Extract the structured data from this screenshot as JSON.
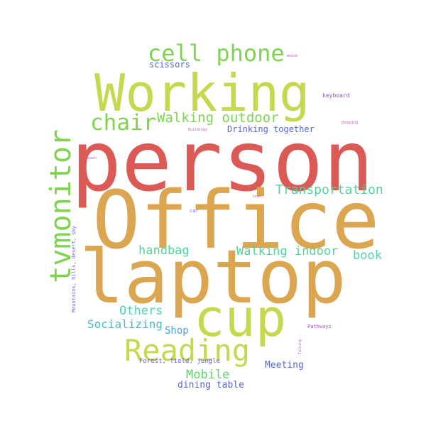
{
  "words": [
    {
      "id": "person",
      "text": "person",
      "color": "#dc5a55"
    },
    {
      "id": "office",
      "text": "Office",
      "color": "#dca550"
    },
    {
      "id": "laptop",
      "text": "laptop",
      "color": "#dca550"
    },
    {
      "id": "working",
      "text": "Working",
      "color": "#c5d84e"
    },
    {
      "id": "cup",
      "text": "cup",
      "color": "#c5d84e"
    },
    {
      "id": "reading",
      "text": "Reading",
      "color": "#c5d84e"
    },
    {
      "id": "tvmonitor",
      "text": "tvmonitor",
      "color": "#7fd44f"
    },
    {
      "id": "cell-phone",
      "text": "cell phone",
      "color": "#7fd44f"
    },
    {
      "id": "chair",
      "text": "chair",
      "color": "#7fd44f"
    },
    {
      "id": "walking-outdoor",
      "text": "Walking outdoor",
      "color": "#7fd44f"
    },
    {
      "id": "transportation",
      "text": "Transportation",
      "color": "#52d49a"
    },
    {
      "id": "walking-indoor",
      "text": "Walking indoor",
      "color": "#52d49a"
    },
    {
      "id": "handbag",
      "text": "handbag",
      "color": "#52d49a"
    },
    {
      "id": "book",
      "text": "book",
      "color": "#52d4b0"
    },
    {
      "id": "others",
      "text": "Others",
      "color": "#52d4c0"
    },
    {
      "id": "socializing",
      "text": "Socializing",
      "color": "#4db8c8"
    },
    {
      "id": "shop",
      "text": "Shop",
      "color": "#4d9fd0"
    },
    {
      "id": "mobile",
      "text": "Mobile",
      "color": "#62d470"
    },
    {
      "id": "dining-table",
      "text": "dining table",
      "color": "#5566d8"
    },
    {
      "id": "meeting",
      "text": "Meeting",
      "color": "#5566d8"
    },
    {
      "id": "drinking-together",
      "text": "Drinking together",
      "color": "#5566d8"
    },
    {
      "id": "scissors",
      "text": "scissors",
      "color": "#5566d8"
    },
    {
      "id": "forest",
      "text": "Forest, field, jungle",
      "color": "#6666d0"
    },
    {
      "id": "mountains",
      "text": "Mountains, hills, desert, sky",
      "color": "#7a66d0"
    },
    {
      "id": "keyboard",
      "text": "keyboard",
      "color": "#8a55c8"
    },
    {
      "id": "pathways",
      "text": "Pathways",
      "color": "#a055c8"
    },
    {
      "id": "car",
      "text": "car",
      "color": "#8a66c8"
    },
    {
      "id": "mouse",
      "text": "mouse",
      "color": "#d055c8"
    },
    {
      "id": "shopping",
      "text": "Shopping",
      "color": "#d055d0"
    },
    {
      "id": "buildings",
      "text": "Buildings",
      "color": "#c055d0"
    },
    {
      "id": "beach",
      "text": "Beach",
      "color": "#d055c0"
    },
    {
      "id": "bowl",
      "text": "bowl",
      "color": "#d055b0"
    },
    {
      "id": "talking",
      "text": "Talking",
      "color": "#d055c8"
    }
  ]
}
